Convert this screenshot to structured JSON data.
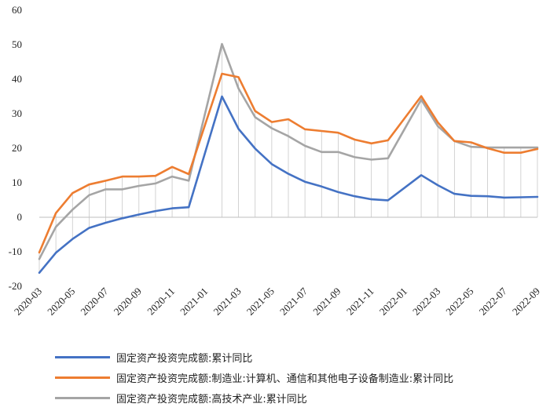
{
  "chart_data": {
    "type": "line",
    "x": [
      "2020-03",
      "2020-04",
      "2020-05",
      "2020-06",
      "2020-07",
      "2020-08",
      "2020-09",
      "2020-10",
      "2020-11",
      "2020-12",
      "2021-01",
      "2021-02",
      "2021-03",
      "2021-04",
      "2021-05",
      "2021-06",
      "2021-07",
      "2021-08",
      "2021-09",
      "2021-10",
      "2021-11",
      "2021-12",
      "2022-01",
      "2022-02",
      "2022-03",
      "2022-04",
      "2022-05",
      "2022-06",
      "2022-07",
      "2022-08",
      "2022-09"
    ],
    "x_tick_labels": [
      "2020-03",
      "2020-05",
      "2020-07",
      "2020-09",
      "2020-11",
      "2021-01",
      "2021-03",
      "2021-05",
      "2021-07",
      "2021-09",
      "2021-11",
      "2022-01",
      "2022-03",
      "2022-05",
      "2022-07",
      "2022-09"
    ],
    "ylim": [
      -20,
      60
    ],
    "y_ticks": [
      -20,
      -10,
      0,
      10,
      20,
      30,
      40,
      50,
      60
    ],
    "grid": "vertical drop lines",
    "legend_position": "bottom",
    "series": [
      {
        "name": "固定资产投资完成额:累计同比",
        "color": "#4472C4",
        "values": [
          -16.1,
          -10.3,
          -6.3,
          -3.1,
          -1.6,
          -0.3,
          0.8,
          1.8,
          2.6,
          2.9,
          null,
          35.0,
          25.6,
          19.9,
          15.4,
          12.6,
          10.3,
          8.9,
          7.3,
          6.1,
          5.2,
          4.9,
          null,
          12.2,
          9.3,
          6.8,
          6.2,
          6.1,
          5.7,
          5.8,
          5.9
        ]
      },
      {
        "name": "固定资产投资完成额:制造业:计算机、通信和其他电子设备制造业:累计同比",
        "color": "#ED7D31",
        "values": [
          -10.2,
          1.2,
          7.0,
          9.5,
          10.6,
          11.8,
          11.8,
          12.0,
          14.6,
          12.5,
          null,
          41.6,
          40.6,
          30.8,
          27.6,
          28.4,
          25.5,
          25.0,
          24.5,
          22.5,
          21.4,
          22.3,
          null,
          35.1,
          27.5,
          22.1,
          21.7,
          20.0,
          18.7,
          18.7,
          19.8
        ]
      },
      {
        "name": "固定资产投资完成额:高技术产业:累计同比",
        "color": "#A5A5A5",
        "values": [
          -12.1,
          -2.8,
          2.2,
          6.4,
          8.1,
          8.1,
          9.1,
          9.8,
          11.8,
          10.6,
          null,
          50.2,
          37.3,
          29.0,
          25.8,
          23.5,
          20.7,
          18.9,
          18.9,
          17.4,
          16.7,
          17.1,
          null,
          34.1,
          26.4,
          22.1,
          20.4,
          20.2,
          20.2,
          20.2,
          20.2
        ]
      }
    ]
  }
}
